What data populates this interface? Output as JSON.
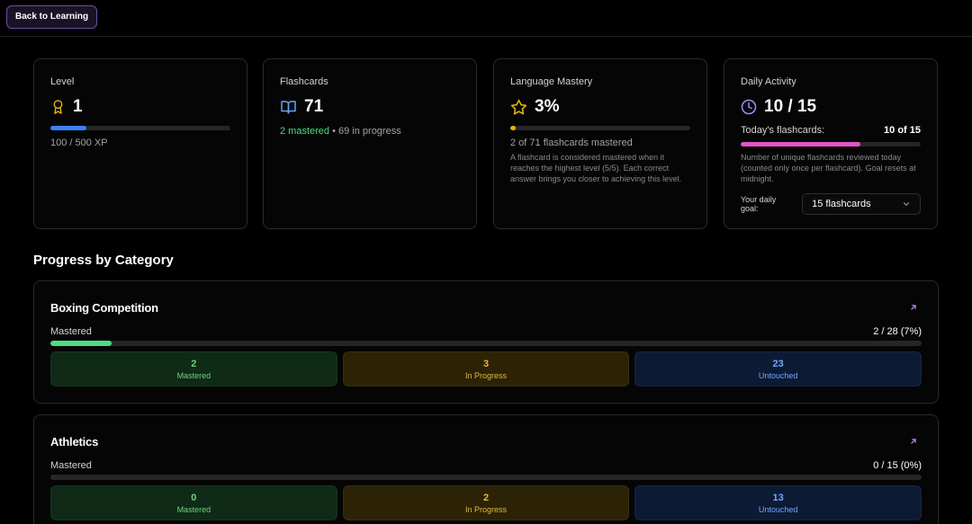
{
  "header": {
    "back_label": "Back to Learning"
  },
  "stats": {
    "level": {
      "label": "Level",
      "value": "1",
      "xp_text": "100 / 500 XP",
      "progress": 0.2
    },
    "flashcards": {
      "label": "Flashcards",
      "value": "71",
      "mastered_text": "2 mastered",
      "separator": " • ",
      "in_progress_text": "69 in progress"
    },
    "mastery": {
      "label": "Language Mastery",
      "value": "3%",
      "progress": 0.03,
      "summary": "2 of 71 flashcards mastered",
      "note": "A flashcard is considered mastered when it reaches the highest level (5/5). Each correct answer brings you closer to achieving this level."
    },
    "daily": {
      "label": "Daily Activity",
      "value": "10 / 15",
      "today_label": "Today's flashcards:",
      "today_value": "10 of 15",
      "progress": 0.667,
      "note": "Number of unique flashcards reviewed today (counted only once per flashcard). Goal resets at midnight.",
      "goal_label": "Your daily goal:",
      "goal_value": "15 flashcards"
    }
  },
  "section_title": "Progress by Category",
  "categories": [
    {
      "title": "Boxing Competition",
      "mastered_label": "Mastered",
      "count_text": "2 / 28 (7%)",
      "progress": 0.07,
      "mastered": "2",
      "mastered_lbl": "Mastered",
      "in_progress": "3",
      "in_progress_lbl": "In Progress",
      "untouched": "23",
      "untouched_lbl": "Untouched"
    },
    {
      "title": "Athletics",
      "mastered_label": "Mastered",
      "count_text": "0 / 15 (0%)",
      "progress": 0,
      "mastered": "0",
      "mastered_lbl": "Mastered",
      "in_progress": "2",
      "in_progress_lbl": "In Progress",
      "untouched": "13",
      "untouched_lbl": "Untouched"
    }
  ],
  "colors": {
    "level_bar": "#3b82f6",
    "mastery_bar": "#eab308",
    "daily_bar": "#e254c7",
    "category_bar": "#4ade80",
    "mastered_text": "#4ade80",
    "accent_purple": "#a78bfa"
  }
}
